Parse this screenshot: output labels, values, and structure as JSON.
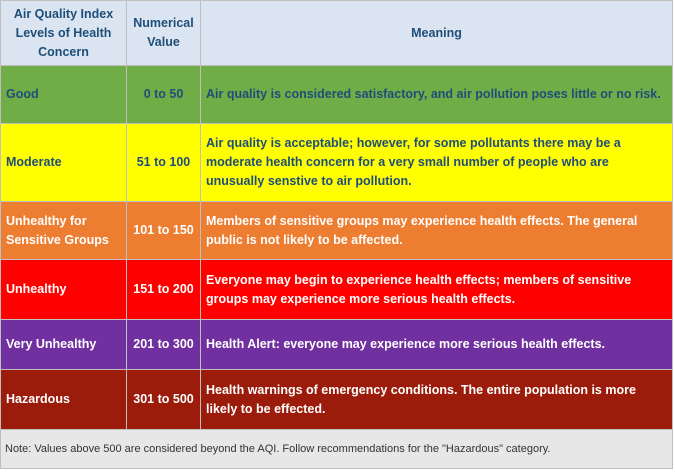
{
  "header": {
    "level": "Air Quality Index Levels of Health Concern",
    "value": "Numerical Value",
    "meaning": "Meaning"
  },
  "rows": [
    {
      "level": "Good",
      "value": "0 to 50",
      "meaning": "Air quality is considered satisfactory, and air pollution poses little or no risk.",
      "bg": "#70ad47",
      "text": "#1f4e79"
    },
    {
      "level": "Moderate",
      "value": "51 to 100",
      "meaning": "Air quality is acceptable;  however, for some pollutants there may be a moderate health concern for a very small number of people who are unusually senstive to air pollution.",
      "bg": "#ffff00",
      "text": "#1f4e79"
    },
    {
      "level": "Unhealthy for Sensitive Groups",
      "value": "101 to 150",
      "meaning": "Members of sensitive groups may experience health effects.  The general public is not likely to be affected.",
      "bg": "#ed7d31",
      "text": "#ffffff"
    },
    {
      "level": "Unhealthy",
      "value": "151 to 200",
      "meaning": "Everyone may begin to experience health effects; members of sensitive groups may experience more serious health effects.",
      "bg": "#ff0000",
      "text": "#ffffff"
    },
    {
      "level": "Very Unhealthy",
      "value": "201 to 300",
      "meaning": "Health Alert:  everyone may experience more serious health effects.",
      "bg": "#7030a0",
      "text": "#ffffff"
    },
    {
      "level": "Hazardous",
      "value": "301 to 500",
      "meaning": "Health warnings of emergency conditions.  The entire population is more likely to be effected.",
      "bg": "#9c1c0c",
      "text": "#ffffff"
    }
  ],
  "note": "Note:  Values above 500 are considered beyond the AQI. Follow recommendations for the \"Hazardous\" category."
}
